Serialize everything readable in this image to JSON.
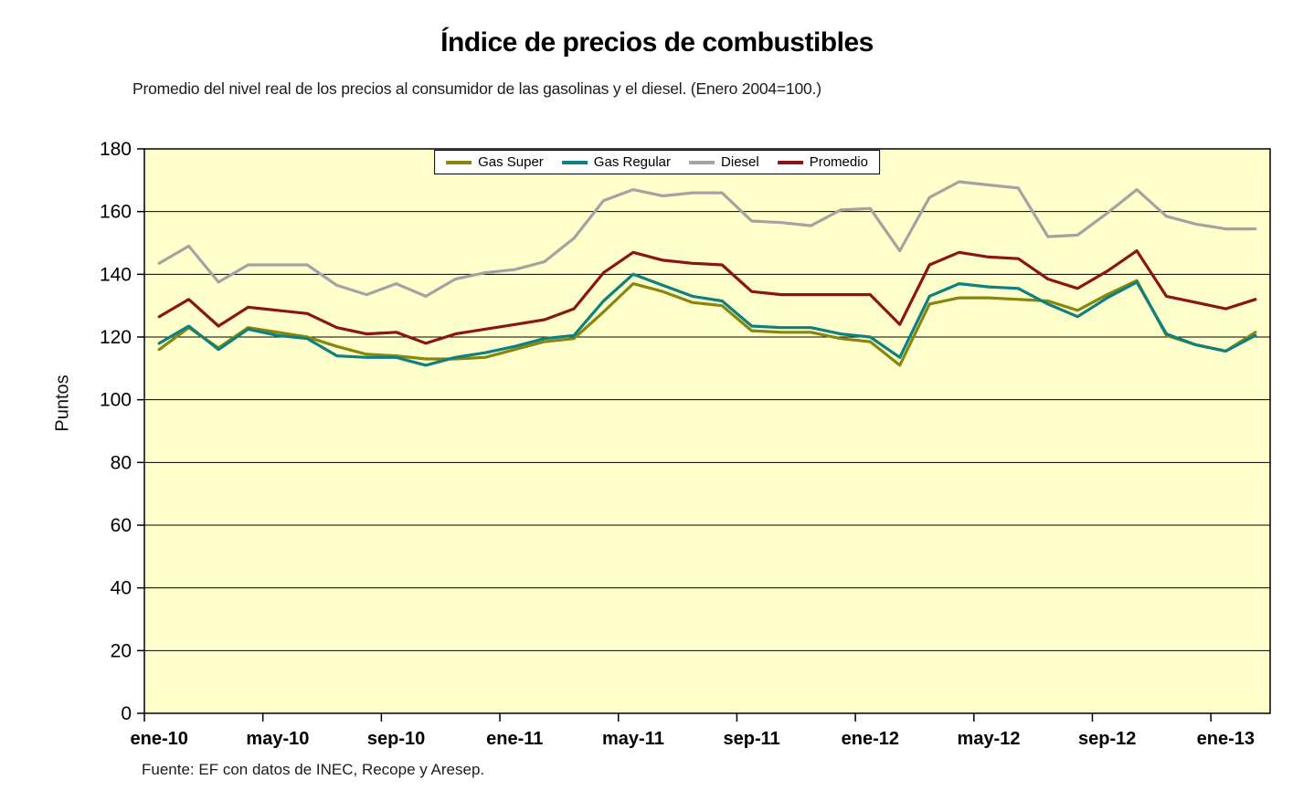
{
  "page": {
    "title": "Índice de precios de combustibles",
    "subtitle": "Promedio del nivel real de los precios al consumidor de las gasolinas y el diesel. (Enero 2004=100.)",
    "source": "Fuente: EF con datos de INEC, Recope y Aresep."
  },
  "chart_data": {
    "type": "line",
    "title": "Índice de precios de combustibles",
    "subtitle": "Promedio del nivel real de los precios al consumidor de las gasolinas y el diesel. (Enero 2004=100.)",
    "xlabel": "",
    "ylabel": "Puntos",
    "ylim": [
      0,
      180
    ],
    "ytick_interval": 20,
    "grid": true,
    "legend_position": "top-center",
    "plot_bg": "#FFFFCC",
    "axis_color": "#000000",
    "categories": [
      "ene-10",
      "feb-10",
      "mar-10",
      "abr-10",
      "may-10",
      "jun-10",
      "jul-10",
      "ago-10",
      "sep-10",
      "oct-10",
      "nov-10",
      "dic-10",
      "ene-11",
      "feb-11",
      "mar-11",
      "abr-11",
      "may-11",
      "jun-11",
      "jul-11",
      "ago-11",
      "sep-11",
      "oct-11",
      "nov-11",
      "dic-11",
      "ene-12",
      "feb-12",
      "mar-12",
      "abr-12",
      "may-12",
      "jun-12",
      "jul-12",
      "ago-12",
      "sep-12",
      "oct-12",
      "nov-12",
      "dic-12",
      "ene-13",
      "feb-13"
    ],
    "x_axis_labels_shown": [
      "ene-10",
      "may-10",
      "sep-10",
      "ene-11",
      "may-11",
      "sep-11",
      "ene-12",
      "may-12",
      "sep-12",
      "ene-13"
    ],
    "series": [
      {
        "name": "Gas Super",
        "color": "#87870F",
        "values": [
          116,
          123,
          116.5,
          123,
          121.5,
          120,
          117,
          114.5,
          114,
          113,
          113,
          113.5,
          116,
          118.5,
          119.5,
          128,
          137,
          134.5,
          131,
          130,
          122,
          121.5,
          121.5,
          119.5,
          118.5,
          111,
          130.5,
          132.5,
          132.5,
          132,
          131.5,
          128.5,
          133.5,
          138,
          120.5,
          117.5,
          115.5,
          121.5
        ]
      },
      {
        "name": "Gas Regular",
        "color": "#0F8080",
        "values": [
          118,
          123.5,
          116,
          122.5,
          120.5,
          119.5,
          114,
          113.5,
          113.5,
          111,
          113.5,
          115,
          117,
          119.5,
          120.5,
          131.5,
          140,
          136.5,
          133,
          131.5,
          123.5,
          123,
          123,
          121,
          120,
          113.5,
          133,
          137,
          136,
          135.5,
          130.5,
          126.5,
          132.5,
          137.5,
          121,
          117.5,
          115.5,
          120.5
        ]
      },
      {
        "name": "Diesel",
        "color": "#A3A3A3",
        "values": [
          143.5,
          149,
          137.5,
          143,
          143,
          143,
          136.5,
          133.5,
          137,
          133,
          138.5,
          140.5,
          141.5,
          144,
          151.5,
          163.5,
          167,
          165,
          166,
          166,
          157,
          156.5,
          155.5,
          160.5,
          161,
          147.5,
          164.5,
          169.5,
          168.5,
          167.5,
          152,
          152.5,
          159.5,
          167,
          158.5,
          156,
          154.5,
          154.5
        ]
      },
      {
        "name": "Promedio",
        "color": "#8B1414",
        "values": [
          126.5,
          132,
          123.5,
          129.5,
          128.5,
          127.5,
          123,
          121,
          121.5,
          118,
          121,
          122.5,
          124,
          125.5,
          129,
          140.5,
          147,
          144.5,
          143.5,
          143,
          134.5,
          133.5,
          133.5,
          133.5,
          133.5,
          124,
          143,
          147,
          145.5,
          145,
          138.5,
          135.5,
          141,
          147.5,
          133,
          131,
          129,
          132
        ]
      }
    ]
  }
}
